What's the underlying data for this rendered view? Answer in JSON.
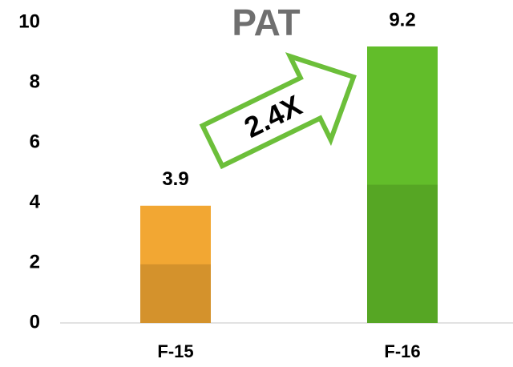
{
  "chart_data": {
    "type": "bar",
    "title": "PAT",
    "annotation": "2.4X",
    "categories": [
      "F-15",
      "F-16"
    ],
    "values": [
      3.9,
      9.2
    ],
    "colors": [
      "#f2a733",
      "#62bd2a"
    ],
    "ylim": [
      0,
      10
    ],
    "yticks": [
      0,
      2,
      4,
      6,
      8,
      10
    ]
  }
}
